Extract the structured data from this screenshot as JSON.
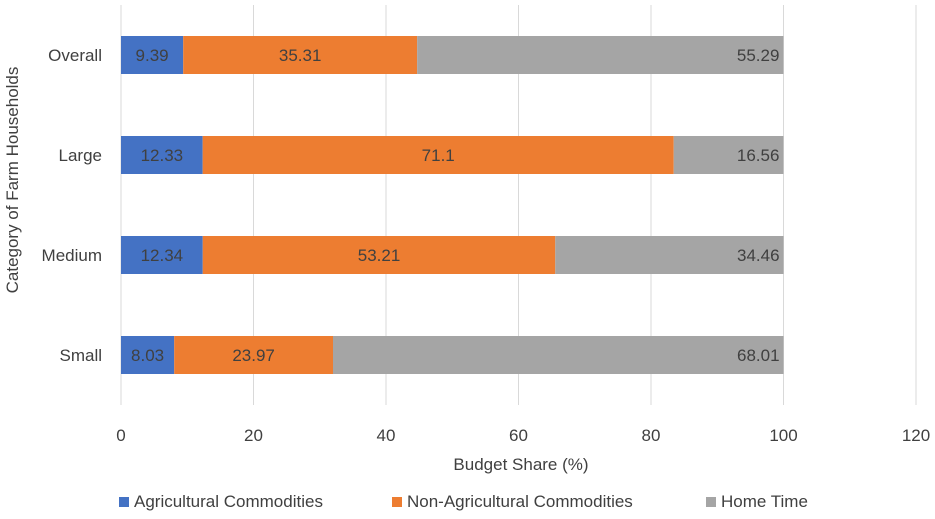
{
  "chart_data": {
    "type": "bar",
    "orientation": "horizontal",
    "stacked": true,
    "title": "",
    "xlabel": "Budget Share (%)",
    "ylabel": "Category of Farm Households",
    "xlim": [
      0,
      120
    ],
    "xticks": [
      "0",
      "20",
      "40",
      "60",
      "80",
      "100",
      "120"
    ],
    "grid": true,
    "legend_position": "bottom",
    "categories": [
      "Overall",
      "Large",
      "Medium",
      "Small"
    ],
    "series": [
      {
        "name": "Agricultural Commodities",
        "color": "#4472C4",
        "values": [
          9.39,
          12.33,
          12.34,
          8.03
        ],
        "labels": [
          "9.39",
          "12.33",
          "12.34",
          "8.03"
        ]
      },
      {
        "name": "Non-Agricultural Commodities",
        "color": "#ED7D31",
        "values": [
          35.31,
          71.1,
          53.21,
          23.97
        ],
        "labels": [
          "35.31",
          "71.1",
          "53.21",
          "23.97"
        ]
      },
      {
        "name": "Home Time",
        "color": "#A5A5A5",
        "values": [
          55.29,
          16.56,
          34.46,
          68.01
        ],
        "labels": [
          "55.29",
          "16.56",
          "34.46",
          "68.01"
        ]
      }
    ]
  }
}
